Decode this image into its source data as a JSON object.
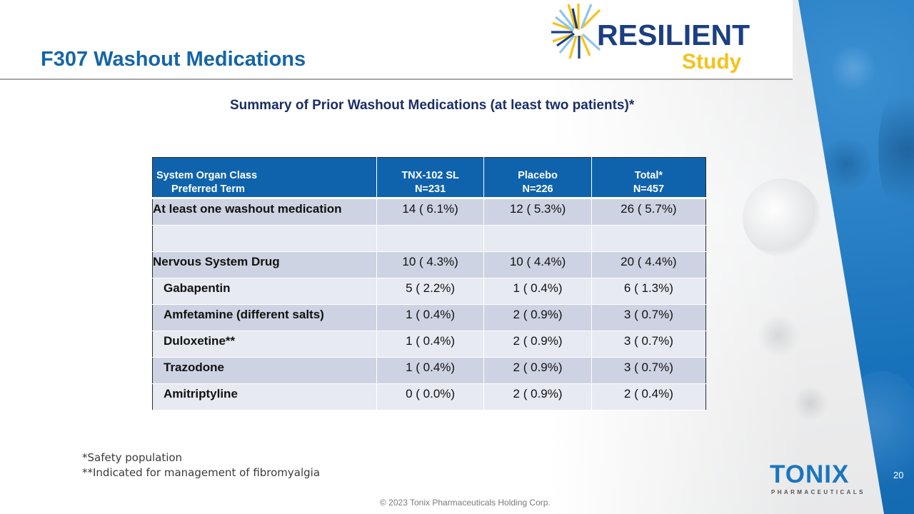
{
  "slide": {
    "title": "F307 Washout Medications",
    "subtitle": "Summary of Prior Washout Medications (at least two patients)*",
    "page_number": "20",
    "copyright": "© 2023 Tonix Pharmaceuticals Holding Corp."
  },
  "logos": {
    "study_logo_main": "RESILIENT",
    "study_logo_sub": "Study",
    "company_logo_main": "TONIX",
    "company_logo_sub": "PHARMACEUTICALS",
    "colors": {
      "study_navy": "#1b3f80",
      "study_gold": "#f4c21a",
      "tonix_blue": "#1a76be"
    }
  },
  "table": {
    "headers": [
      {
        "line1": "System Organ Class",
        "line2": "Preferred Term"
      },
      {
        "line1": "TNX-102 SL",
        "line2": "N=231"
      },
      {
        "line1": "Placebo",
        "line2": "N=226"
      },
      {
        "line1": "Total*",
        "line2": "N=457"
      }
    ],
    "rows": [
      {
        "label": "At least one washout medication",
        "tnx": "14 ( 6.1%)",
        "placebo": "12 ( 5.3%)",
        "total": "26 ( 5.7%)"
      },
      {
        "label": "",
        "tnx": "",
        "placebo": "",
        "total": ""
      },
      {
        "label": "Nervous System Drug",
        "tnx": "10 ( 4.3%)",
        "placebo": "10 ( 4.4%)",
        "total": "20 ( 4.4%)"
      },
      {
        "label": "Gabapentin",
        "tnx": "5 ( 2.2%)",
        "placebo": "1 ( 0.4%)",
        "total": "6 ( 1.3%)"
      },
      {
        "label": "Amfetamine (different salts)",
        "tnx": "1 ( 0.4%)",
        "placebo": "2 ( 0.9%)",
        "total": "3 ( 0.7%)"
      },
      {
        "label": "Duloxetine**",
        "tnx": "1 ( 0.4%)",
        "placebo": "2 ( 0.9%)",
        "total": "3 ( 0.7%)"
      },
      {
        "label": "Trazodone",
        "tnx": "1 ( 0.4%)",
        "placebo": "2 ( 0.9%)",
        "total": "3 ( 0.7%)"
      },
      {
        "label": "Amitriptyline",
        "tnx": "0 ( 0.0%)",
        "placebo": "2 ( 0.9%)",
        "total": "2 ( 0.4%)"
      }
    ]
  },
  "footnotes": {
    "line1": "*Safety population",
    "line2": "**Indicated for management of fibromyalgia"
  }
}
